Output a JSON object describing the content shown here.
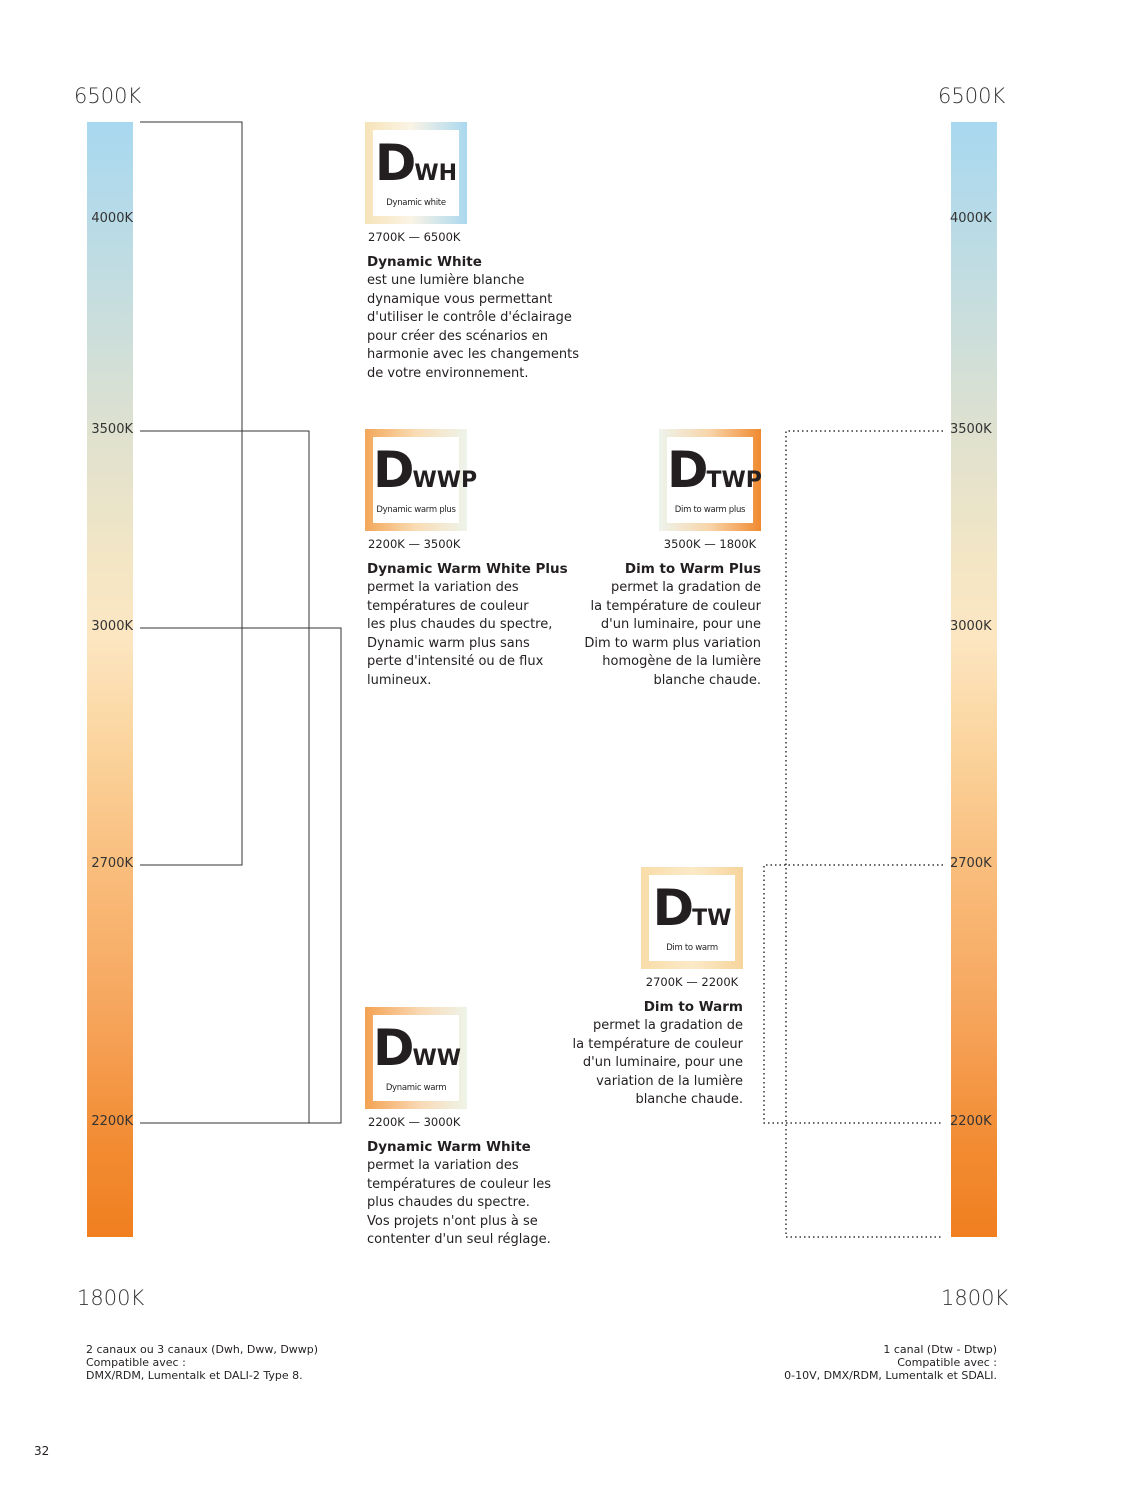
{
  "left_scale": {
    "top": "6500K",
    "bottom": "1800K",
    "ticks": [
      "4000K",
      "3500K",
      "3000K",
      "2700K",
      "2200K"
    ],
    "note": [
      "2 canaux ou 3 canaux (Dwh, Dww, Dwwp)",
      "Compatible avec :",
      "DMX/RDM, Lumentalk et DALI-2 Type 8."
    ]
  },
  "right_scale": {
    "top": "6500K",
    "bottom": "1800K",
    "ticks": [
      "4000K",
      "3500K",
      "3000K",
      "2700K",
      "2200K"
    ],
    "note": [
      "1 canal (Dtw - Dtwp)",
      "Compatible avec :",
      "0-10V, DMX/RDM, Lumentalk et SDALI."
    ]
  },
  "cards": [
    {
      "letter": "D",
      "sub": "WH",
      "caption": "Dynamic white",
      "range": "2700K — 6500K",
      "title": "Dynamic White",
      "body": [
        "est une lumière blanche",
        "dynamique vous permettant",
        "d'utiliser le contrôle d'éclairage",
        "pour créer des scénarios en",
        "harmonie avec les changements",
        "de votre environnement."
      ]
    },
    {
      "letter": "D",
      "sub": "WWP",
      "caption": "Dynamic warm plus",
      "range": "2200K — 3500K",
      "title": "Dynamic Warm White Plus",
      "body": [
        "permet la variation des",
        "températures de couleur",
        "les plus chaudes du spectre,",
        "Dynamic warm plus sans",
        "perte d'intensité ou de flux",
        "lumineux."
      ]
    },
    {
      "letter": "D",
      "sub": "TWP",
      "caption": "Dim to warm plus",
      "range": "3500K — 1800K",
      "title": "Dim to Warm Plus",
      "body": [
        "permet la gradation de",
        "la température de couleur",
        "d'un luminaire, pour une",
        "Dim to warm plus variation",
        "homogène de la lumière",
        "blanche chaude."
      ]
    },
    {
      "letter": "D",
      "sub": "TW",
      "caption": "Dim to warm",
      "range": "2700K — 2200K",
      "title": "Dim to Warm",
      "body": [
        "permet la gradation de",
        "la température de couleur",
        "d'un luminaire, pour une",
        "variation de la lumière",
        "blanche chaude."
      ]
    },
    {
      "letter": "D",
      "sub": "WW",
      "caption": "Dynamic warm",
      "range": "2200K — 3000K",
      "title": "Dynamic Warm White",
      "body": [
        "permet la variation des",
        "températures de couleur les",
        "plus chaudes du spectre.",
        "Vos projets n'ont plus à se",
        "contenter d'un seul réglage."
      ]
    }
  ],
  "page_number": "32"
}
